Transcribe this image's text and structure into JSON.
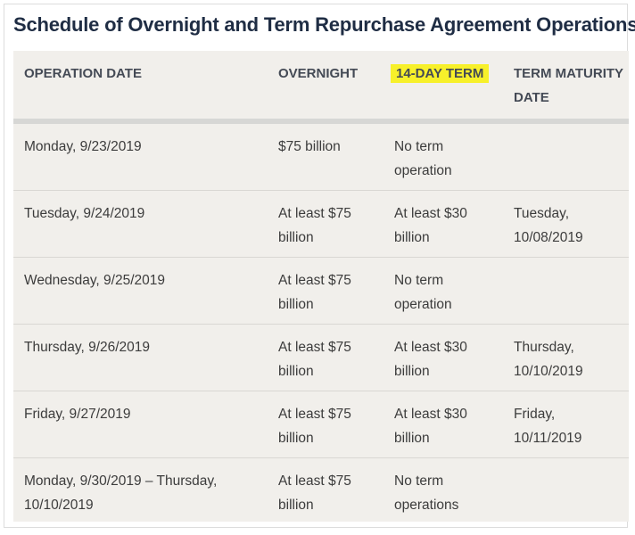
{
  "title": "Schedule of Overnight and Term Repurchase Agreement Operations",
  "columns": {
    "operation_date": "OPERATION DATE",
    "overnight": "OVERNIGHT",
    "term": "14-DAY TERM",
    "maturity_line1": "TERM MATURITY",
    "maturity_line2": "DATE"
  },
  "colors": {
    "highlight": "#f7f02a",
    "title": "#1f2d44",
    "table_bg": "#f1efeb"
  },
  "rows": [
    {
      "date": [
        "Monday, 9/23/2019",
        ""
      ],
      "overnight": [
        "$75 billion",
        ""
      ],
      "term": [
        "No term",
        "operation"
      ],
      "maturity": [
        "",
        ""
      ]
    },
    {
      "date": [
        "Tuesday, 9/24/2019",
        ""
      ],
      "overnight": [
        "At least $75",
        "billion"
      ],
      "term": [
        "At least $30",
        "billion"
      ],
      "maturity": [
        "Tuesday,",
        "10/08/2019"
      ]
    },
    {
      "date": [
        "Wednesday, 9/25/2019",
        ""
      ],
      "overnight": [
        "At least $75",
        "billion"
      ],
      "term": [
        "No term",
        "operation"
      ],
      "maturity": [
        "",
        ""
      ]
    },
    {
      "date": [
        "Thursday, 9/26/2019",
        ""
      ],
      "overnight": [
        "At least $75",
        "billion"
      ],
      "term": [
        "At least $30",
        "billion"
      ],
      "maturity": [
        "Thursday,",
        "10/10/2019"
      ]
    },
    {
      "date": [
        "Friday, 9/27/2019",
        ""
      ],
      "overnight": [
        "At least $75",
        "billion"
      ],
      "term": [
        "At least $30",
        "billion"
      ],
      "maturity": [
        "Friday,",
        "10/11/2019"
      ]
    },
    {
      "date": [
        "Monday, 9/30/2019 – Thursday,",
        "10/10/2019"
      ],
      "overnight": [
        "At least $75",
        "billion"
      ],
      "term": [
        "No term",
        "operations"
      ],
      "maturity": [
        "",
        ""
      ]
    }
  ]
}
